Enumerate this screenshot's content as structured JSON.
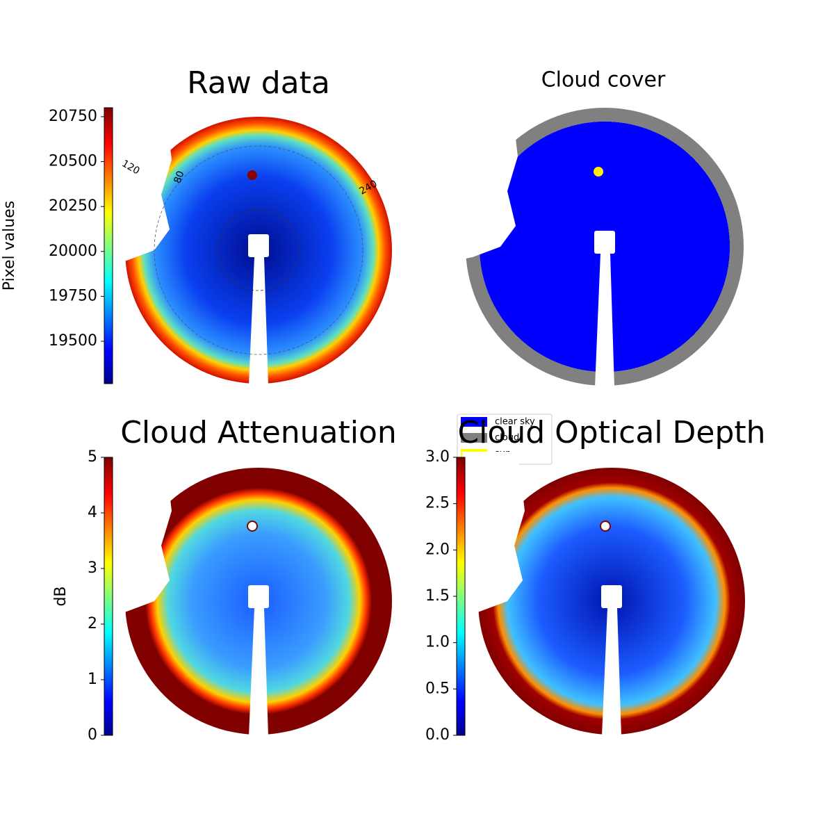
{
  "chart_data": [
    {
      "type": "image",
      "title": "Raw data",
      "colormap": "jet",
      "ylabel": "Pixel values",
      "ylim": [
        19264,
        20800
      ],
      "yticks": [
        19500,
        19750,
        20000,
        20250,
        20500,
        20750
      ],
      "annotations": [
        "120",
        "80",
        "240"
      ]
    },
    {
      "type": "image",
      "title": "Cloud cover",
      "series": [
        {
          "name": "clear sky",
          "color": "#0000ff"
        },
        {
          "name": "cloud",
          "color": "#808080"
        },
        {
          "name": "sun",
          "color": "#ffff00"
        }
      ]
    },
    {
      "type": "image",
      "title": "Cloud Attenuation",
      "colormap": "jet",
      "ylabel": "dB",
      "ylim": [
        0,
        5
      ],
      "yticks": [
        0,
        1,
        2,
        3,
        4,
        5
      ]
    },
    {
      "type": "image",
      "title": "Cloud Optical Depth",
      "colormap": "jet",
      "ylim": [
        0,
        3
      ],
      "yticks": [
        {
          "value": 0,
          "label": "0.0"
        },
        0.5,
        {
          "value": 1,
          "label": "1.0"
        },
        1.5,
        {
          "value": 2,
          "label": "2.0"
        },
        2.5,
        {
          "value": 3,
          "label": "3.0"
        }
      ]
    }
  ]
}
